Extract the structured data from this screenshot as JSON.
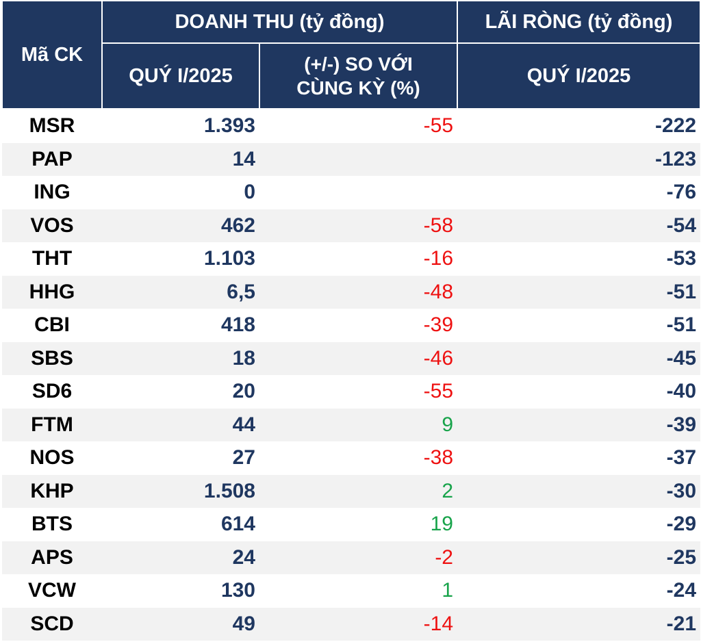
{
  "header": {
    "code_label": "Mã CK",
    "revenue_group": "DOANH THU (tỷ đồng)",
    "profit_group": "LÃI RÒNG (tỷ đồng)",
    "revenue_period": "QUÝ I/2025",
    "change_line1": "(+/-) SO VỚI",
    "change_line2": "CÙNG KỲ (%)",
    "profit_period": "QUÝ I/2025"
  },
  "colors": {
    "header_bg": "#1f3760",
    "value_text": "#1f3760",
    "negative": "#ee1111",
    "positive": "#17a34a",
    "stripe": "#f2f2f2"
  },
  "rows": [
    {
      "code": "MSR",
      "revenue": "1.393",
      "change": "-55",
      "change_sign": "neg",
      "net": "-222"
    },
    {
      "code": "PAP",
      "revenue": "14",
      "change": "",
      "change_sign": "",
      "net": "-123"
    },
    {
      "code": "ING",
      "revenue": "0",
      "change": "",
      "change_sign": "",
      "net": "-76"
    },
    {
      "code": "VOS",
      "revenue": "462",
      "change": "-58",
      "change_sign": "neg",
      "net": "-54"
    },
    {
      "code": "THT",
      "revenue": "1.103",
      "change": "-16",
      "change_sign": "neg",
      "net": "-53"
    },
    {
      "code": "HHG",
      "revenue": "6,5",
      "change": "-48",
      "change_sign": "neg",
      "net": "-51"
    },
    {
      "code": "CBI",
      "revenue": "418",
      "change": "-39",
      "change_sign": "neg",
      "net": "-51"
    },
    {
      "code": "SBS",
      "revenue": "18",
      "change": "-46",
      "change_sign": "neg",
      "net": "-45"
    },
    {
      "code": "SD6",
      "revenue": "20",
      "change": "-55",
      "change_sign": "neg",
      "net": "-40"
    },
    {
      "code": "FTM",
      "revenue": "44",
      "change": "9",
      "change_sign": "pos",
      "net": "-39"
    },
    {
      "code": "NOS",
      "revenue": "27",
      "change": "-38",
      "change_sign": "neg",
      "net": "-37"
    },
    {
      "code": "KHP",
      "revenue": "1.508",
      "change": "2",
      "change_sign": "pos",
      "net": "-30"
    },
    {
      "code": "BTS",
      "revenue": "614",
      "change": "19",
      "change_sign": "pos",
      "net": "-29"
    },
    {
      "code": "APS",
      "revenue": "24",
      "change": "-2",
      "change_sign": "neg",
      "net": "-25"
    },
    {
      "code": "VCW",
      "revenue": "130",
      "change": "1",
      "change_sign": "pos",
      "net": "-24"
    },
    {
      "code": "SCD",
      "revenue": "49",
      "change": "-14",
      "change_sign": "neg",
      "net": "-21"
    }
  ]
}
